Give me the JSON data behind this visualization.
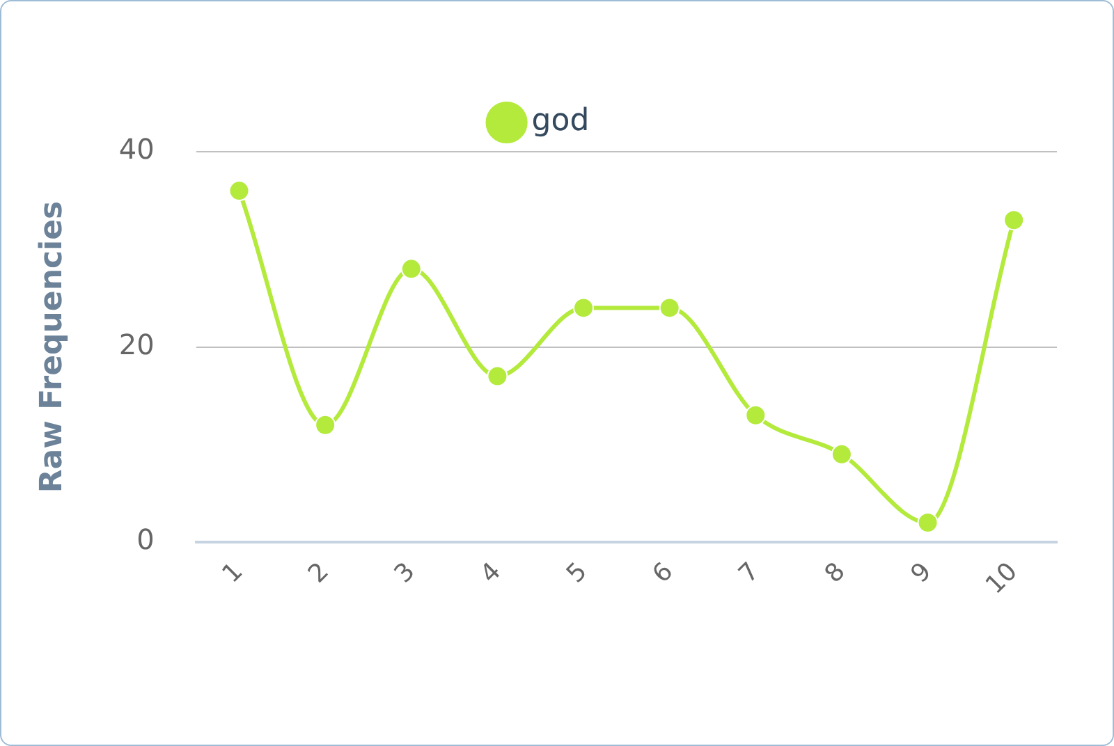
{
  "chart_data": {
    "type": "line",
    "ylabel": "Raw Frequencies",
    "categories": [
      "1",
      "2",
      "3",
      "4",
      "5",
      "6",
      "7",
      "8",
      "9",
      "10"
    ],
    "series": [
      {
        "name": "god",
        "color": "#b3ea3c",
        "values": [
          36,
          12,
          28,
          17,
          24,
          24,
          13,
          9,
          2,
          33
        ]
      }
    ],
    "ylim": [
      0,
      40
    ],
    "yticks": [
      0,
      20,
      40
    ],
    "grid": "y",
    "legend": "top",
    "marker": "circle",
    "line_style": "solid"
  }
}
